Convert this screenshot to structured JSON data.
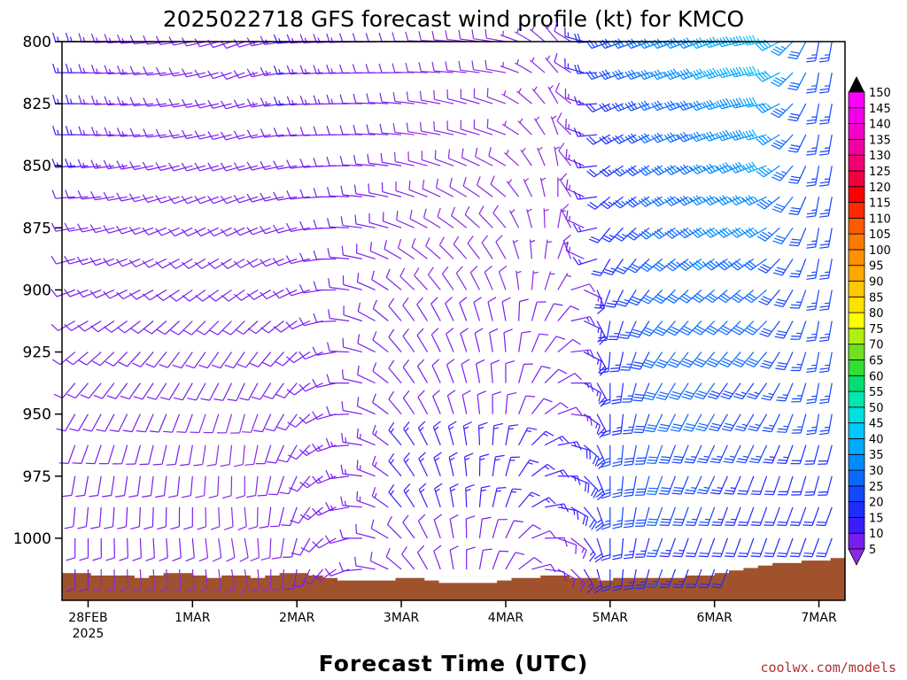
{
  "chart_data": {
    "type": "wind-profile",
    "title": "2025022718 GFS forecast wind profile (kt) for KMCO",
    "xlabel": "Forecast Time (UTC)",
    "ylabel": "",
    "credit": "coolwx.com/models",
    "y_axis": {
      "unit": "hPa",
      "reversed": true,
      "range": [
        800,
        1025
      ],
      "ticks": [
        800,
        825,
        850,
        875,
        900,
        925,
        950,
        975,
        1000
      ]
    },
    "x_axis": {
      "start": "2025-02-27T18:00Z",
      "end": "2025-03-07T06:00Z",
      "ticks": [
        {
          "time": "2025-02-28T00:00Z",
          "label": "28FEB",
          "sublabel": "2025"
        },
        {
          "time": "2025-03-01T00:00Z",
          "label": "1MAR"
        },
        {
          "time": "2025-03-02T00:00Z",
          "label": "2MAR"
        },
        {
          "time": "2025-03-03T00:00Z",
          "label": "3MAR"
        },
        {
          "time": "2025-03-04T00:00Z",
          "label": "4MAR"
        },
        {
          "time": "2025-03-05T00:00Z",
          "label": "5MAR"
        },
        {
          "time": "2025-03-06T00:00Z",
          "label": "6MAR"
        },
        {
          "time": "2025-03-07T00:00Z",
          "label": "7MAR"
        }
      ]
    },
    "colorbar": {
      "unit": "kt",
      "levels": [
        5,
        10,
        15,
        20,
        25,
        30,
        35,
        40,
        45,
        50,
        55,
        60,
        65,
        70,
        75,
        80,
        85,
        90,
        95,
        100,
        105,
        110,
        115,
        120,
        125,
        130,
        135,
        140,
        145,
        150
      ],
      "colors": [
        "#8a2be2",
        "#7a1df0",
        "#3a1cff",
        "#1e2cff",
        "#1448ff",
        "#0a6aff",
        "#008cff",
        "#00aaff",
        "#00c8ff",
        "#00e0e0",
        "#00e8b0",
        "#00e070",
        "#30e030",
        "#70e020",
        "#b0f010",
        "#ffff00",
        "#ffe000",
        "#ffc800",
        "#ffa800",
        "#ff9000",
        "#ff7a00",
        "#ff5a00",
        "#ff2a00",
        "#ff0000",
        "#f00040",
        "#f00070",
        "#f000a0",
        "#f000c8",
        "#f000e8",
        "#ff00ff"
      ]
    },
    "terrain": {
      "fill": "#a0522d",
      "note": "surface pressure along the bottom of the chart",
      "pressure_hpa": [
        1014,
        1014,
        1015,
        1015,
        1015,
        1016,
        1015,
        1014,
        1014,
        1015,
        1016,
        1015,
        1015,
        1016,
        1015,
        1014,
        1014,
        1015,
        1016,
        1017,
        1017,
        1017,
        1017,
        1016,
        1016,
        1017,
        1018,
        1018,
        1018,
        1018,
        1017,
        1016,
        1016,
        1015,
        1015,
        1016,
        1016,
        1017,
        1016,
        1016,
        1016,
        1016,
        1016,
        1015,
        1015,
        1014,
        1013,
        1012,
        1011,
        1010,
        1010,
        1009,
        1009,
        1008
      ]
    },
    "barbs": {
      "pressure_levels": [
        800,
        812.5,
        825,
        837.5,
        850,
        862.5,
        875,
        887.5,
        900,
        912.5,
        925,
        937.5,
        950,
        962.5,
        975,
        987.5,
        1000,
        1012.5
      ],
      "key_times": [
        "2025-02-28T00:00Z",
        "2025-03-01T00:00Z",
        "2025-03-01T12:00Z",
        "2025-03-02T00:00Z",
        "2025-03-03T00:00Z",
        "2025-03-04T00:00Z",
        "2025-03-04T12:00Z",
        "2025-03-05T00:00Z",
        "2025-03-05T12:00Z",
        "2025-03-06T00:00Z",
        "2025-03-06T12:00Z",
        "2025-03-07T00:00Z"
      ],
      "speed_kt": {
        "800": [
          15,
          10,
          10,
          15,
          10,
          8,
          5,
          25,
          35,
          40,
          45,
          25
        ],
        "812.5": [
          15,
          10,
          10,
          15,
          10,
          8,
          5,
          25,
          35,
          40,
          45,
          25
        ],
        "825": [
          15,
          10,
          10,
          15,
          10,
          8,
          5,
          20,
          30,
          35,
          40,
          25
        ],
        "837.5": [
          15,
          10,
          10,
          12,
          10,
          8,
          5,
          20,
          30,
          35,
          40,
          25
        ],
        "850": [
          15,
          10,
          10,
          12,
          10,
          8,
          5,
          20,
          30,
          35,
          40,
          25
        ],
        "862.5": [
          12,
          10,
          10,
          12,
          10,
          8,
          5,
          20,
          30,
          35,
          35,
          25
        ],
        "875": [
          12,
          10,
          10,
          12,
          10,
          8,
          5,
          20,
          30,
          35,
          35,
          25
        ],
        "887.5": [
          12,
          10,
          10,
          12,
          10,
          8,
          5,
          20,
          30,
          35,
          30,
          25
        ],
        "900": [
          12,
          10,
          10,
          12,
          10,
          8,
          5,
          20,
          30,
          30,
          30,
          25
        ],
        "912.5": [
          12,
          10,
          10,
          12,
          10,
          10,
          10,
          20,
          30,
          30,
          30,
          25
        ],
        "925": [
          12,
          10,
          10,
          12,
          12,
          10,
          10,
          20,
          30,
          30,
          30,
          25
        ],
        "937.5": [
          12,
          10,
          10,
          12,
          12,
          10,
          10,
          20,
          30,
          30,
          25,
          25
        ],
        "950": [
          12,
          10,
          8,
          12,
          12,
          12,
          12,
          20,
          30,
          30,
          25,
          25
        ],
        "962.5": [
          12,
          10,
          8,
          12,
          15,
          15,
          15,
          25,
          30,
          25,
          25,
          20
        ],
        "975": [
          12,
          10,
          8,
          12,
          15,
          15,
          15,
          25,
          30,
          25,
          20,
          20
        ],
        "987.5": [
          10,
          10,
          8,
          12,
          15,
          15,
          15,
          25,
          30,
          25,
          20,
          20
        ],
        "1000": [
          10,
          10,
          8,
          10,
          12,
          12,
          12,
          20,
          25,
          20,
          20,
          20
        ],
        "1012.5": [
          10,
          8,
          8,
          10,
          12,
          12,
          12,
          20,
          25,
          20,
          20,
          20
        ]
      },
      "direction_deg": {
        "800": [
          270,
          260,
          250,
          265,
          270,
          280,
          320,
          250,
          250,
          250,
          260,
          190
        ],
        "812.5": [
          270,
          260,
          250,
          265,
          270,
          280,
          320,
          250,
          250,
          250,
          260,
          190
        ],
        "825": [
          270,
          260,
          255,
          265,
          275,
          290,
          330,
          245,
          250,
          250,
          260,
          190
        ],
        "837.5": [
          270,
          260,
          255,
          265,
          275,
          290,
          340,
          240,
          245,
          250,
          255,
          190
        ],
        "850": [
          265,
          255,
          255,
          260,
          280,
          300,
          350,
          235,
          240,
          245,
          250,
          190
        ],
        "862.5": [
          265,
          250,
          250,
          260,
          285,
          310,
          0,
          230,
          240,
          245,
          245,
          190
        ],
        "875": [
          260,
          245,
          245,
          255,
          290,
          320,
          10,
          220,
          235,
          240,
          240,
          190
        ],
        "887.5": [
          255,
          240,
          240,
          250,
          300,
          330,
          20,
          210,
          230,
          235,
          235,
          190
        ],
        "900": [
          250,
          235,
          235,
          245,
          310,
          340,
          30,
          200,
          225,
          230,
          230,
          190
        ],
        "912.5": [
          240,
          225,
          225,
          235,
          320,
          350,
          40,
          190,
          220,
          225,
          225,
          190
        ],
        "925": [
          230,
          215,
          215,
          225,
          320,
          355,
          50,
          185,
          215,
          220,
          220,
          190
        ],
        "937.5": [
          220,
          210,
          205,
          220,
          320,
          0,
          60,
          180,
          210,
          215,
          215,
          190
        ],
        "950": [
          210,
          200,
          195,
          215,
          320,
          5,
          70,
          180,
          205,
          210,
          210,
          190
        ],
        "962.5": [
          200,
          190,
          185,
          210,
          320,
          10,
          80,
          180,
          200,
          205,
          205,
          195
        ],
        "975": [
          190,
          185,
          180,
          205,
          320,
          15,
          90,
          180,
          200,
          205,
          200,
          195
        ],
        "987.5": [
          185,
          180,
          175,
          200,
          320,
          20,
          100,
          180,
          200,
          200,
          200,
          200
        ],
        "1000": [
          180,
          175,
          170,
          195,
          315,
          25,
          110,
          180,
          200,
          200,
          200,
          200
        ],
        "1012.5": [
          180,
          175,
          170,
          190,
          310,
          30,
          120,
          180,
          200,
          200,
          200,
          200
        ]
      }
    }
  }
}
